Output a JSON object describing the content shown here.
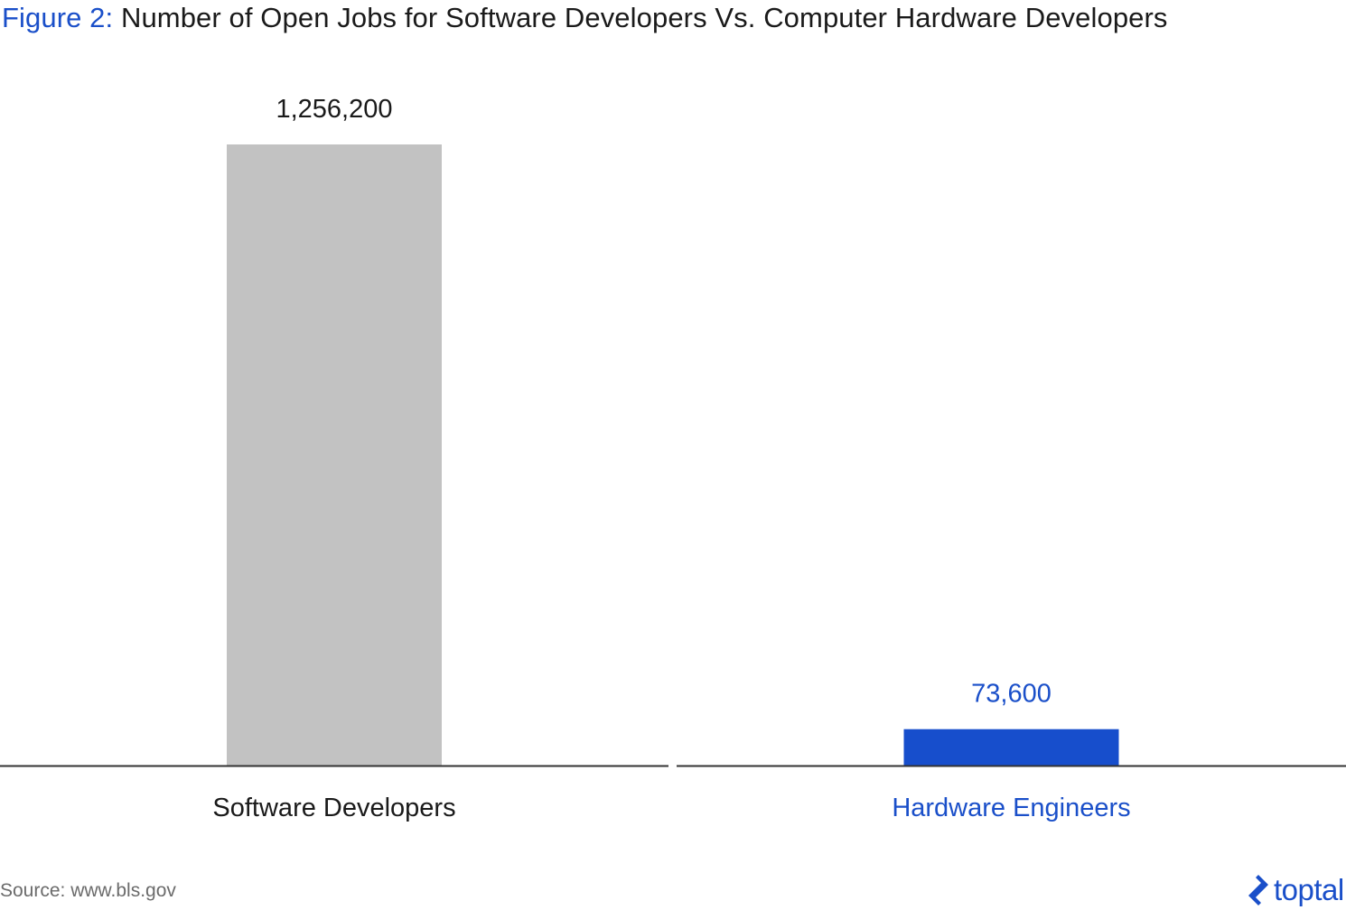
{
  "title_prefix": "Figure 2:",
  "title_text": "Number of Open Jobs for Software Developers Vs. Computer Hardware Developers",
  "source": "Source: www.bls.gov",
  "logo": {
    "icon": "toptal-logo-icon",
    "text": "toptal"
  },
  "colors": {
    "accent": "#1a4fc9",
    "gray_bar": "#c2c2c2",
    "text": "#1a1a1a",
    "axis": "#333333"
  },
  "chart_data": {
    "type": "bar",
    "title": "Figure 2: Number of Open Jobs for Software Developers Vs. Computer Hardware Developers",
    "categories": [
      "Software Developers",
      "Hardware Engineers"
    ],
    "values": [
      1256200,
      73600
    ],
    "value_labels": [
      "1,256,200",
      "73,600"
    ],
    "bar_colors": [
      "#c2c2c2",
      "#174ecc"
    ],
    "label_colors": [
      "#1a1a1a",
      "#1a4fc9"
    ],
    "ylim": [
      0,
      1256200
    ],
    "grid": false,
    "legend": "none"
  }
}
